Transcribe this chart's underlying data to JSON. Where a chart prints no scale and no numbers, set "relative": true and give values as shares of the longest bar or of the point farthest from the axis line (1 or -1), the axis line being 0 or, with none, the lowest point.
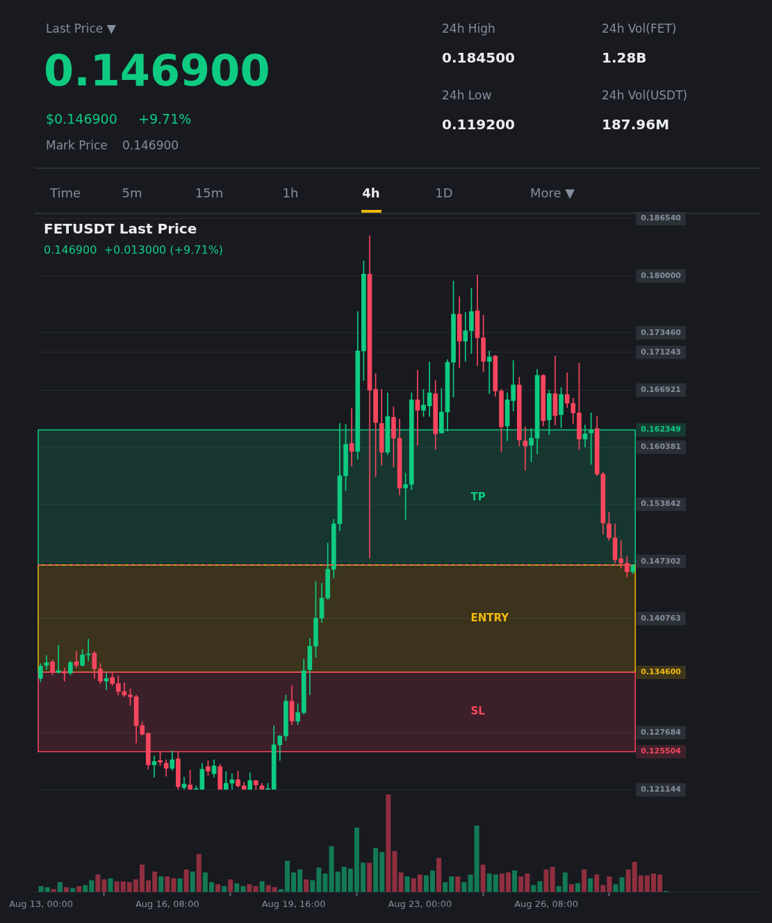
{
  "chart_data": [
    {
      "type": "other",
      "annotations": [
        "Last Price ▼",
        "0.146900",
        "$0.146900",
        "+9.71%",
        "Mark Price",
        "0.146900",
        "24h High",
        "0.184500",
        "24h Low",
        "0.119200",
        "24h Vol(FET)",
        "1.28B",
        "24h Vol(USDT)",
        "187.96M",
        "Time",
        "5m",
        "15m",
        "1h",
        "4h",
        "1D",
        "More ▼"
      ]
    },
    {
      "type": "candlestick",
      "title": "FETUSDT Last Price",
      "subtitle": "0.146900  +0.013000 (+9.71%)",
      "categories": [
        null,
        null,
        null,
        null,
        null,
        null,
        null,
        null,
        null,
        null,
        null,
        null,
        null,
        null,
        null,
        null,
        null,
        null,
        null,
        null,
        null,
        null,
        null,
        null,
        null,
        null,
        null,
        null,
        null,
        null,
        null,
        null,
        null,
        null,
        null,
        null,
        null,
        null,
        null,
        null,
        null,
        null,
        null,
        null,
        null,
        null,
        null,
        null,
        null,
        null,
        null,
        null,
        null,
        null,
        null,
        null,
        null,
        null,
        null,
        null,
        null,
        null,
        null,
        null,
        null,
        null,
        null,
        null,
        null,
        null,
        null,
        null,
        null,
        null,
        null,
        null,
        null,
        null,
        null,
        null,
        null,
        null,
        null,
        null,
        null,
        null,
        null,
        null,
        null,
        null,
        null,
        null,
        null,
        null,
        null,
        null,
        null,
        null,
        null,
        null
      ],
      "ohlc": [
        [
          0.1339,
          0.1356,
          0.1335,
          0.1353
        ],
        [
          0.1354,
          0.1365,
          0.1349,
          0.1357
        ],
        [
          0.1358,
          0.136,
          0.1343,
          0.1346
        ],
        [
          0.1346,
          0.1377,
          0.1345,
          0.1348
        ],
        [
          0.1347,
          0.1351,
          0.1336,
          0.1345
        ],
        [
          0.1345,
          0.1359,
          0.1343,
          0.1357
        ],
        [
          0.1358,
          0.137,
          0.1351,
          0.1354
        ],
        [
          0.1354,
          0.1372,
          0.1353,
          0.1366
        ],
        [
          0.1366,
          0.1384,
          0.1359,
          0.1367
        ],
        [
          0.1368,
          0.137,
          0.1339,
          0.135
        ],
        [
          0.135,
          0.1356,
          0.1333,
          0.1336
        ],
        [
          0.1336,
          0.1345,
          0.1326,
          0.1339
        ],
        [
          0.134,
          0.1345,
          0.1331,
          0.1333
        ],
        [
          0.1333,
          0.1342,
          0.132,
          0.1324
        ],
        [
          0.1324,
          0.1334,
          0.1318,
          0.132
        ],
        [
          0.132,
          0.1327,
          0.1308,
          0.1318
        ],
        [
          0.1318,
          0.132,
          0.1265,
          0.1285
        ],
        [
          0.1285,
          0.1289,
          0.1274,
          0.1275
        ],
        [
          0.1276,
          0.1277,
          0.1235,
          0.124
        ],
        [
          0.124,
          0.125,
          0.1226,
          0.1244
        ],
        [
          0.1245,
          0.1255,
          0.1239,
          0.1243
        ],
        [
          0.1242,
          0.1246,
          0.1227,
          0.1236
        ],
        [
          0.1236,
          0.1256,
          0.1234,
          0.1246
        ],
        [
          0.1247,
          0.1255,
          0.1212,
          0.1215
        ],
        [
          0.1214,
          0.1226,
          0.1212,
          0.1218
        ],
        [
          0.1217,
          0.1234,
          0.1212,
          0.1212
        ],
        [
          0.1212,
          0.1216,
          0.1212,
          0.1212
        ],
        [
          0.1212,
          0.1242,
          0.1212,
          0.1235
        ],
        [
          0.1238,
          0.1245,
          0.1228,
          0.1233
        ],
        [
          0.123,
          0.1246,
          0.1226,
          0.1239
        ],
        [
          0.1238,
          0.1241,
          0.1212,
          0.1212
        ],
        [
          0.1212,
          0.1232,
          0.1212,
          0.1219
        ],
        [
          0.1219,
          0.123,
          0.1212,
          0.1223
        ],
        [
          0.1223,
          0.1233,
          0.1214,
          0.1216
        ],
        [
          0.1216,
          0.122,
          0.1212,
          0.1212
        ],
        [
          0.1212,
          0.1231,
          0.1212,
          0.1222
        ],
        [
          0.1222,
          0.1222,
          0.1212,
          0.1217
        ],
        [
          0.1216,
          0.1219,
          0.1212,
          0.1212
        ],
        [
          0.1212,
          0.1219,
          0.1212,
          0.1212
        ],
        [
          0.1212,
          0.1285,
          0.1212,
          0.1263
        ],
        [
          0.1263,
          0.1274,
          0.1245,
          0.1273
        ],
        [
          0.1273,
          0.132,
          0.1268,
          0.1313
        ],
        [
          0.1313,
          0.1331,
          0.1286,
          0.129
        ],
        [
          0.129,
          0.131,
          0.1286,
          0.13
        ],
        [
          0.13,
          0.1361,
          0.1298,
          0.1348
        ],
        [
          0.1349,
          0.1385,
          0.132,
          0.1376
        ],
        [
          0.1376,
          0.145,
          0.1363,
          0.1408
        ],
        [
          0.1408,
          0.1448,
          0.1403,
          0.1431
        ],
        [
          0.1431,
          0.1494,
          0.1429,
          0.1464
        ],
        [
          0.1464,
          0.1521,
          0.1454,
          0.1516
        ],
        [
          0.1516,
          0.1631,
          0.1508,
          0.1571
        ],
        [
          0.1571,
          0.163,
          0.1554,
          0.1607
        ],
        [
          0.1608,
          0.1648,
          0.1582,
          0.1599
        ],
        [
          0.1599,
          0.1759,
          0.159,
          0.1714
        ],
        [
          0.1714,
          0.1817,
          0.168,
          0.1802
        ],
        [
          0.1802,
          0.1846,
          0.1477,
          0.1669
        ],
        [
          0.167,
          0.1688,
          0.157,
          0.1632
        ],
        [
          0.1631,
          0.167,
          0.1583,
          0.1598
        ],
        [
          0.1598,
          0.1666,
          0.1595,
          0.1639
        ],
        [
          0.1638,
          0.165,
          0.1581,
          0.1614
        ],
        [
          0.1614,
          0.1636,
          0.1549,
          0.1557
        ],
        [
          0.1557,
          0.1574,
          0.1521,
          0.1561
        ],
        [
          0.1561,
          0.1666,
          0.1555,
          0.1658
        ],
        [
          0.1658,
          0.1692,
          0.1606,
          0.1646
        ],
        [
          0.1646,
          0.167,
          0.1639,
          0.1652
        ],
        [
          0.1651,
          0.1701,
          0.1639,
          0.1666
        ],
        [
          0.1665,
          0.168,
          0.1601,
          0.1619
        ],
        [
          0.162,
          0.1671,
          0.162,
          0.1644
        ],
        [
          0.1644,
          0.1704,
          0.1622,
          0.1701
        ],
        [
          0.1701,
          0.1794,
          0.1661,
          0.1756
        ],
        [
          0.1756,
          0.1776,
          0.1695,
          0.1725
        ],
        [
          0.1725,
          0.1758,
          0.1702,
          0.1737
        ],
        [
          0.1737,
          0.1786,
          0.1711,
          0.1759
        ],
        [
          0.176,
          0.1801,
          0.1697,
          0.1729
        ],
        [
          0.1729,
          0.1755,
          0.169,
          0.1702
        ],
        [
          0.1702,
          0.1714,
          0.1665,
          0.1707
        ],
        [
          0.1708,
          0.1709,
          0.1662,
          0.1668
        ],
        [
          0.1668,
          0.167,
          0.1598,
          0.1627
        ],
        [
          0.1628,
          0.1666,
          0.1611,
          0.1658
        ],
        [
          0.1657,
          0.1703,
          0.1645,
          0.1675
        ],
        [
          0.1675,
          0.1684,
          0.1605,
          0.1612
        ],
        [
          0.1611,
          0.1627,
          0.1577,
          0.1605
        ],
        [
          0.1606,
          0.1625,
          0.1587,
          0.1614
        ],
        [
          0.1614,
          0.1693,
          0.1596,
          0.1686
        ],
        [
          0.1686,
          0.1687,
          0.1628,
          0.1634
        ],
        [
          0.1635,
          0.1669,
          0.1618,
          0.1665
        ],
        [
          0.1665,
          0.1708,
          0.1629,
          0.164
        ],
        [
          0.1641,
          0.1672,
          0.1626,
          0.1664
        ],
        [
          0.1664,
          0.1689,
          0.1649,
          0.1654
        ],
        [
          0.1654,
          0.166,
          0.1631,
          0.1643
        ],
        [
          0.1643,
          0.17,
          0.1601,
          0.1613
        ],
        [
          0.1613,
          0.1629,
          0.1604,
          0.1619
        ],
        [
          0.162,
          0.1643,
          0.1584,
          0.1623
        ],
        [
          0.1625,
          0.1639,
          0.1571,
          0.1573
        ],
        [
          0.1573,
          0.1575,
          0.1504,
          0.1517
        ],
        [
          0.1516,
          0.1529,
          0.1497,
          0.15
        ],
        [
          0.15,
          0.1516,
          0.1471,
          0.1475
        ],
        [
          0.1476,
          0.1497,
          0.1465,
          0.1471
        ],
        [
          0.1471,
          0.1479,
          0.1455,
          0.1461
        ],
        [
          0.1461,
          0.1469,
          0.1459,
          0.1469
        ]
      ],
      "colors": [
        "#0ecb81",
        "#0ecb81",
        "#f6465d",
        "#0ecb81",
        "#f6465d",
        "#0ecb81",
        "#f6465d",
        "#0ecb81",
        "#0ecb81",
        "#f6465d",
        "#f6465d",
        "#0ecb81",
        "#f6465d",
        "#f6465d",
        "#f6465d",
        "#f6465d",
        "#f6465d",
        "#f6465d",
        "#f6465d",
        "#0ecb81",
        "#f6465d",
        "#f6465d",
        "#0ecb81",
        "#f6465d",
        "#0ecb81",
        "#f6465d",
        "#0ecb81",
        "#0ecb81",
        "#f6465d",
        "#0ecb81",
        "#f6465d",
        "#0ecb81",
        "#0ecb81",
        "#f6465d",
        "#f6465d",
        "#0ecb81",
        "#f6465d",
        "#f6465d",
        "#0ecb81",
        "#0ecb81",
        "#0ecb81",
        "#0ecb81",
        "#f6465d",
        "#0ecb81",
        "#0ecb81",
        "#0ecb81",
        "#0ecb81",
        "#0ecb81",
        "#0ecb81",
        "#0ecb81",
        "#0ecb81",
        "#0ecb81",
        "#f6465d",
        "#0ecb81",
        "#0ecb81",
        "#f6465d",
        "#f6465d",
        "#f6465d",
        "#0ecb81",
        "#f6465d",
        "#f6465d",
        "#0ecb81",
        "#0ecb81",
        "#f6465d",
        "#0ecb81",
        "#0ecb81",
        "#f6465d",
        "#0ecb81",
        "#0ecb81",
        "#0ecb81",
        "#f6465d",
        "#0ecb81",
        "#0ecb81",
        "#f6465d",
        "#f6465d",
        "#0ecb81",
        "#f6465d",
        "#f6465d",
        "#0ecb81",
        "#0ecb81",
        "#f6465d",
        "#f6465d",
        "#0ecb81",
        "#0ecb81",
        "#f6465d",
        "#0ecb81",
        "#f6465d",
        "#0ecb81",
        "#f6465d",
        "#f6465d",
        "#f6465d",
        "#0ecb81",
        "#0ecb81",
        "#f6465d",
        "#f6465d",
        "#f6465d",
        "#f6465d",
        "#f6465d",
        "#f6465d",
        "#0ecb81"
      ],
      "ylim": [
        0.121144,
        0.18654
      ],
      "yticks": [
        {
          "value": 0.18654,
          "label": "0.186540"
        },
        {
          "value": 0.18,
          "label": "0.180000"
        },
        {
          "value": 0.17346,
          "label": "0.173460"
        },
        {
          "value": 0.171243,
          "label": "0.171243"
        },
        {
          "value": 0.166921,
          "label": "0.166921"
        },
        {
          "value": 0.162349,
          "label": "0.162349"
        },
        {
          "value": 0.160381,
          "label": "0.160381"
        },
        {
          "value": 0.153842,
          "label": "0.153842"
        },
        {
          "value": 0.147302,
          "label": "0.147302"
        },
        {
          "value": 0.140763,
          "label": "0.140763"
        },
        {
          "value": 0.1346,
          "label": "0.134600"
        },
        {
          "value": 0.127684,
          "label": "0.127684"
        },
        {
          "value": 0.125504,
          "label": "0.125504"
        },
        {
          "value": 0.121144,
          "label": "0.121144"
        }
      ],
      "grid": "y",
      "tick_labels": "y",
      "ref_lines": [
        {
          "axis": "y",
          "value": 0.1469,
          "color": "#f6465d",
          "line_style": "dashed"
        }
      ],
      "bands": [
        {
          "axis": "y",
          "from": 0.1469,
          "to": 0.162349,
          "label": "TP",
          "color": "#0ecb81"
        },
        {
          "axis": "y",
          "from": 0.1346,
          "to": 0.1469,
          "label": "ENTRY",
          "color": "#f0b90b"
        },
        {
          "axis": "y",
          "from": 0.125504,
          "to": 0.1346,
          "label": "SL",
          "color": "#f6465d"
        }
      ]
    },
    {
      "type": "bar",
      "x": [
        "--08-13T00:00",
        "--08-13T04:00",
        "--08-13T08:00",
        "--08-13T12:00",
        "--08-13T16:00",
        "--08-13T20:00",
        "--08-14T00:00",
        "--08-14T04:00",
        "--08-14T08:00",
        "--08-14T12:00",
        "--08-14T16:00",
        "--08-14T20:00",
        "--08-15T00:00",
        "--08-15T04:00",
        "--08-15T08:00",
        "--08-15T12:00",
        "--08-15T16:00",
        "--08-15T20:00",
        "--08-16T00:00",
        "--08-16T04:00",
        "--08-16T08:00",
        "--08-16T12:00",
        "--08-16T16:00",
        "--08-16T20:00",
        "--08-17T00:00",
        "--08-17T04:00",
        "--08-17T08:00",
        "--08-17T12:00",
        "--08-17T16:00",
        "--08-17T20:00",
        "--08-18T00:00",
        "--08-18T04:00",
        "--08-18T08:00",
        "--08-18T12:00",
        "--08-18T16:00",
        "--08-18T20:00",
        "--08-19T00:00",
        "--08-19T04:00",
        "--08-19T08:00",
        "--08-19T12:00",
        "--08-19T16:00",
        "--08-19T20:00",
        "--08-20T00:00",
        "--08-20T04:00",
        "--08-20T08:00",
        "--08-20T12:00",
        "--08-20T16:00",
        "--08-20T20:00",
        "--08-21T00:00",
        "--08-21T04:00",
        "--08-21T08:00",
        "--08-21T12:00",
        "--08-21T16:00",
        "--08-21T20:00",
        "--08-22T00:00",
        "--08-22T04:00",
        "--08-22T08:00",
        "--08-22T12:00",
        "--08-22T16:00",
        "--08-22T20:00",
        "--08-23T00:00",
        "--08-23T04:00",
        "--08-23T08:00",
        "--08-23T12:00",
        "--08-23T16:00",
        "--08-23T20:00",
        "--08-24T00:00",
        "--08-24T04:00",
        "--08-24T08:00",
        "--08-24T12:00",
        "--08-24T16:00",
        "--08-24T20:00",
        "--08-25T00:00",
        "--08-25T04:00",
        "--08-25T08:00",
        "--08-25T12:00",
        "--08-25T16:00",
        "--08-25T20:00",
        "--08-26T00:00",
        "--08-26T04:00",
        "--08-26T08:00",
        "--08-26T12:00",
        "--08-26T16:00",
        "--08-26T20:00",
        "--08-27T00:00",
        "--08-27T04:00",
        "--08-27T08:00",
        "--08-27T12:00",
        "--08-27T16:00",
        "--08-27T20:00",
        "--08-28T00:00",
        "--08-28T04:00",
        "--08-28T08:00",
        "--08-28T12:00",
        "--08-28T16:00",
        "--08-28T20:00",
        "--08-29T00:00",
        "--08-29T04:00",
        "--08-29T08:00",
        "--08-29T12:00"
      ],
      "values": [
        0.06,
        0.05,
        0.03,
        0.1,
        0.05,
        0.04,
        0.06,
        0.07,
        0.12,
        0.18,
        0.13,
        0.14,
        0.11,
        0.11,
        0.1,
        0.13,
        0.28,
        0.12,
        0.21,
        0.16,
        0.16,
        0.14,
        0.14,
        0.23,
        0.21,
        0.39,
        0.2,
        0.1,
        0.08,
        0.06,
        0.13,
        0.09,
        0.06,
        0.08,
        0.06,
        0.11,
        0.07,
        0.05,
        0.03,
        0.32,
        0.2,
        0.23,
        0.13,
        0.12,
        0.25,
        0.19,
        0.47,
        0.21,
        0.26,
        0.24,
        0.66,
        0.3,
        0.3,
        0.45,
        0.41,
        1,
        0.42,
        0.2,
        0.16,
        0.14,
        0.18,
        0.17,
        0.22,
        0.35,
        0.1,
        0.16,
        0.16,
        0.1,
        0.18,
        0.68,
        0.28,
        0.19,
        0.18,
        0.19,
        0.2,
        0.22,
        0.16,
        0.19,
        0.07,
        0.11,
        0.23,
        0.26,
        0.06,
        0.2,
        0.08,
        0.09,
        0.23,
        0.14,
        0.18,
        0.07,
        0.16,
        0.08,
        0.15,
        0.23,
        0.31,
        0.17,
        0.17,
        0.19,
        0.18,
        0.01
      ],
      "colors": [
        "#137a55",
        "#137a55",
        "#8f2f3f",
        "#137a55",
        "#8f2f3f",
        "#137a55",
        "#8f2f3f",
        "#137a55",
        "#137a55",
        "#8f2f3f",
        "#8f2f3f",
        "#137a55",
        "#8f2f3f",
        "#8f2f3f",
        "#8f2f3f",
        "#8f2f3f",
        "#8f2f3f",
        "#8f2f3f",
        "#8f2f3f",
        "#137a55",
        "#8f2f3f",
        "#8f2f3f",
        "#137a55",
        "#8f2f3f",
        "#137a55",
        "#8f2f3f",
        "#137a55",
        "#137a55",
        "#8f2f3f",
        "#137a55",
        "#8f2f3f",
        "#137a55",
        "#137a55",
        "#8f2f3f",
        "#8f2f3f",
        "#137a55",
        "#8f2f3f",
        "#8f2f3f",
        "#137a55",
        "#137a55",
        "#137a55",
        "#137a55",
        "#8f2f3f",
        "#137a55",
        "#137a55",
        "#137a55",
        "#137a55",
        "#137a55",
        "#137a55",
        "#137a55",
        "#137a55",
        "#137a55",
        "#8f2f3f",
        "#137a55",
        "#137a55",
        "#8f2f3f",
        "#8f2f3f",
        "#8f2f3f",
        "#137a55",
        "#8f2f3f",
        "#8f2f3f",
        "#137a55",
        "#137a55",
        "#8f2f3f",
        "#137a55",
        "#137a55",
        "#8f2f3f",
        "#137a55",
        "#137a55",
        "#137a55",
        "#8f2f3f",
        "#137a55",
        "#137a55",
        "#8f2f3f",
        "#8f2f3f",
        "#137a55",
        "#8f2f3f",
        "#8f2f3f",
        "#137a55",
        "#137a55",
        "#8f2f3f",
        "#8f2f3f",
        "#137a55",
        "#137a55",
        "#8f2f3f",
        "#137a55",
        "#8f2f3f",
        "#137a55",
        "#8f2f3f",
        "#8f2f3f",
        "#8f2f3f",
        "#137a55",
        "#137a55",
        "#8f2f3f",
        "#8f2f3f",
        "#8f2f3f",
        "#8f2f3f",
        "#8f2f3f",
        "#8f2f3f",
        "#137a55"
      ],
      "relative": true,
      "xlim": [
        "--08-12T20:00",
        "--09-01T00:00"
      ],
      "xticks": [
        {
          "value": "--08-13T00:00",
          "label": "Aug 13, 00:00"
        },
        {
          "value": "--08-16T08:00",
          "label": "Aug 16, 08:00"
        },
        {
          "value": "--08-19T16:00",
          "label": "Aug 19, 16:00"
        },
        {
          "value": "--08-23T00:00",
          "label": "Aug 23, 00:00"
        },
        {
          "value": "--08-26T08:00",
          "label": "Aug 26, 08:00"
        }
      ],
      "tick_labels": "x"
    }
  ]
}
